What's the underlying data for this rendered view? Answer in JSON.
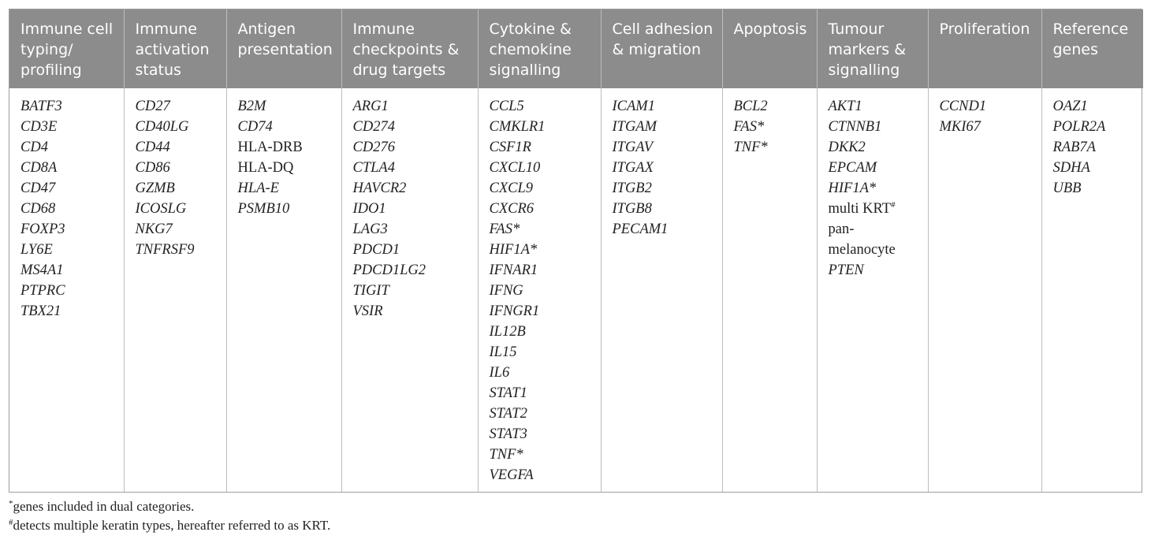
{
  "table": {
    "columns": [
      {
        "header": "Immune cell typing/ profiling",
        "genes": [
          {
            "name": "BATF3",
            "italic": true
          },
          {
            "name": "CD3E",
            "italic": true
          },
          {
            "name": "CD4",
            "italic": true
          },
          {
            "name": "CD8A",
            "italic": true
          },
          {
            "name": "CD47",
            "italic": true
          },
          {
            "name": "CD68",
            "italic": true
          },
          {
            "name": "FOXP3",
            "italic": true
          },
          {
            "name": "LY6E",
            "italic": true
          },
          {
            "name": "MS4A1",
            "italic": true
          },
          {
            "name": "PTPRC",
            "italic": true
          },
          {
            "name": "TBX21",
            "italic": true
          }
        ]
      },
      {
        "header": "Immune activation status",
        "genes": [
          {
            "name": "CD27",
            "italic": true
          },
          {
            "name": "CD40LG",
            "italic": true
          },
          {
            "name": "CD44",
            "italic": true
          },
          {
            "name": "CD86",
            "italic": true
          },
          {
            "name": "GZMB",
            "italic": true
          },
          {
            "name": "ICOSLG",
            "italic": true
          },
          {
            "name": "NKG7",
            "italic": true
          },
          {
            "name": "TNFRSF9",
            "italic": true
          }
        ]
      },
      {
        "header": "Antigen presentation",
        "genes": [
          {
            "name": "B2M",
            "italic": true
          },
          {
            "name": "CD74",
            "italic": true
          },
          {
            "name": "HLA-DRB",
            "italic": false
          },
          {
            "name": "HLA-DQ",
            "italic": false
          },
          {
            "name": "HLA-E",
            "italic": true
          },
          {
            "name": "PSMB10",
            "italic": true
          }
        ]
      },
      {
        "header": "Immune checkpoints & drug targets",
        "genes": [
          {
            "name": "ARG1",
            "italic": true
          },
          {
            "name": "CD274",
            "italic": true
          },
          {
            "name": "CD276",
            "italic": true
          },
          {
            "name": "CTLA4",
            "italic": true
          },
          {
            "name": "HAVCR2",
            "italic": true
          },
          {
            "name": "IDO1",
            "italic": true
          },
          {
            "name": "LAG3",
            "italic": true
          },
          {
            "name": "PDCD1",
            "italic": true
          },
          {
            "name": "PDCD1LG2",
            "italic": true
          },
          {
            "name": "TIGIT",
            "italic": true
          },
          {
            "name": "VSIR",
            "italic": true
          }
        ]
      },
      {
        "header": "Cytokine & chemokine signalling",
        "genes": [
          {
            "name": "CCL5",
            "italic": true
          },
          {
            "name": "CMKLR1",
            "italic": true
          },
          {
            "name": "CSF1R",
            "italic": true
          },
          {
            "name": "CXCL10",
            "italic": true
          },
          {
            "name": "CXCL9",
            "italic": true
          },
          {
            "name": "CXCR6",
            "italic": true
          },
          {
            "name": "FAS*",
            "italic": true
          },
          {
            "name": "HIF1A*",
            "italic": true
          },
          {
            "name": "IFNAR1",
            "italic": true
          },
          {
            "name": "IFNG",
            "italic": true
          },
          {
            "name": "IFNGR1",
            "italic": true
          },
          {
            "name": "IL12B",
            "italic": true
          },
          {
            "name": "IL15",
            "italic": true
          },
          {
            "name": "IL6",
            "italic": true
          },
          {
            "name": "STAT1",
            "italic": true
          },
          {
            "name": "STAT2",
            "italic": true
          },
          {
            "name": "STAT3",
            "italic": true
          },
          {
            "name": "TNF*",
            "italic": true
          },
          {
            "name": "VEGFA",
            "italic": true
          }
        ]
      },
      {
        "header": "Cell adhesion & migration",
        "genes": [
          {
            "name": "ICAM1",
            "italic": true
          },
          {
            "name": "ITGAM",
            "italic": true
          },
          {
            "name": "ITGAV",
            "italic": true
          },
          {
            "name": "ITGAX",
            "italic": true
          },
          {
            "name": "ITGB2",
            "italic": true
          },
          {
            "name": "ITGB8",
            "italic": true
          },
          {
            "name": "PECAM1",
            "italic": true
          }
        ]
      },
      {
        "header": "Apoptosis",
        "genes": [
          {
            "name": "BCL2",
            "italic": true
          },
          {
            "name": "FAS*",
            "italic": true
          },
          {
            "name": "TNF*",
            "italic": true
          }
        ]
      },
      {
        "header": "Tumour markers & signalling",
        "genes": [
          {
            "name": "AKT1",
            "italic": true
          },
          {
            "name": "CTNNB1",
            "italic": true
          },
          {
            "name": "DKK2",
            "italic": true
          },
          {
            "name": "EPCAM",
            "italic": true
          },
          {
            "name": "HIF1A*",
            "italic": true
          },
          {
            "name": "multi KRT",
            "italic": false,
            "sup": "#"
          },
          {
            "name": "pan-",
            "italic": false
          },
          {
            "name": "melanocyte",
            "italic": false
          },
          {
            "name": "PTEN",
            "italic": true
          }
        ]
      },
      {
        "header": "Proliferation",
        "genes": [
          {
            "name": "CCND1",
            "italic": true
          },
          {
            "name": "MKI67",
            "italic": true
          }
        ]
      },
      {
        "header": "Reference genes",
        "genes": [
          {
            "name": "OAZ1",
            "italic": true
          },
          {
            "name": "POLR2A",
            "italic": true
          },
          {
            "name": "RAB7A",
            "italic": true
          },
          {
            "name": "SDHA",
            "italic": true
          },
          {
            "name": "UBB",
            "italic": true
          }
        ]
      }
    ]
  },
  "footnotes": [
    {
      "mark": "*",
      "text": "genes included in dual categories."
    },
    {
      "mark": "#",
      "text": "detects multiple keratin types, hereafter referred to as KRT."
    }
  ],
  "colors": {
    "header_bg": "#8c8c8c",
    "header_text": "#ffffff",
    "border": "#bdbdbd",
    "body_text": "#222222"
  }
}
